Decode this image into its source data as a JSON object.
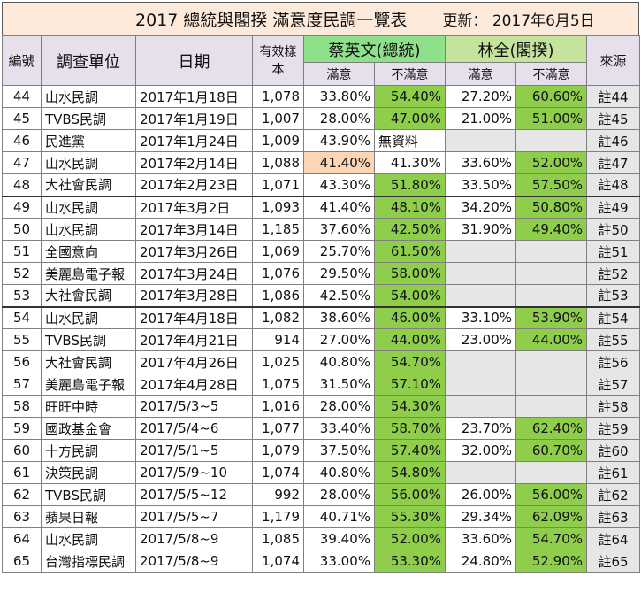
{
  "title": "2017 總統與閣揆  滿意度民調一覽表",
  "updated": "更新： 2017年6月5日",
  "headers": {
    "no": "編號",
    "unit": "調查單位",
    "date": "日期",
    "sample": "有效樣本",
    "tsai": "蔡英文(總統)",
    "lin": "林全(閣揆)",
    "satisfied": "滿意",
    "unsatisfied": "不滿意",
    "source": "來源"
  },
  "colors": {
    "green": "#8fce4b",
    "orange": "#fcd5b4",
    "header": "#e6e0ec",
    "title": "#fdeada"
  },
  "rows": [
    {
      "no": "44",
      "unit": "山水民調",
      "date": "2017年1月18日",
      "n": "1,078",
      "ts": "33.80%",
      "tu": "54.40%",
      "ls": "27.20%",
      "lu": "60.60%",
      "src": "註44"
    },
    {
      "no": "45",
      "unit": "TVBS民調",
      "date": "2017年1月19日",
      "n": "1,007",
      "ts": "28.00%",
      "tu": "47.00%",
      "ls": "21.00%",
      "lu": "51.00%",
      "src": "註45"
    },
    {
      "no": "46",
      "unit": "民進黨",
      "date": "2017年1月24日",
      "n": "1,009",
      "ts": "43.90%",
      "tu": "無資料",
      "ls": "",
      "lu": "",
      "src": "註46"
    },
    {
      "no": "47",
      "unit": "山水民調",
      "date": "2017年2月14日",
      "n": "1,088",
      "ts": "41.40%",
      "tu": "41.30%",
      "ls": "33.60%",
      "lu": "52.00%",
      "src": "註47"
    },
    {
      "no": "48",
      "unit": "大社會民調",
      "date": "2017年2月23日",
      "n": "1,071",
      "ts": "43.30%",
      "tu": "51.80%",
      "ls": "33.50%",
      "lu": "57.50%",
      "src": "註48"
    },
    {
      "no": "49",
      "unit": "山水民調",
      "date": "2017年3月2日",
      "n": "1,093",
      "ts": "41.40%",
      "tu": "48.10%",
      "ls": "34.20%",
      "lu": "50.80%",
      "src": "註49"
    },
    {
      "no": "50",
      "unit": "山水民調",
      "date": "2017年3月14日",
      "n": "1,185",
      "ts": "37.60%",
      "tu": "42.50%",
      "ls": "31.90%",
      "lu": "49.40%",
      "src": "註50"
    },
    {
      "no": "51",
      "unit": "全國意向",
      "date": "2017年3月26日",
      "n": "1,069",
      "ts": "25.70%",
      "tu": "61.50%",
      "ls": "",
      "lu": "",
      "src": "註51"
    },
    {
      "no": "52",
      "unit": "美麗島電子報",
      "date": "2017年3月24日",
      "n": "1,076",
      "ts": "29.50%",
      "tu": "58.00%",
      "ls": "",
      "lu": "",
      "src": "註52"
    },
    {
      "no": "53",
      "unit": "大社會民調",
      "date": "2017年3月28日",
      "n": "1,086",
      "ts": "42.50%",
      "tu": "54.00%",
      "ls": "",
      "lu": "",
      "src": "註53"
    },
    {
      "no": "54",
      "unit": "山水民調",
      "date": "2017年4月18日",
      "n": "1,082",
      "ts": "38.60%",
      "tu": "46.00%",
      "ls": "33.10%",
      "lu": "53.90%",
      "src": "註54"
    },
    {
      "no": "55",
      "unit": "TVBS民調",
      "date": "2017年4月21日",
      "n": "914",
      "ts": "27.00%",
      "tu": "44.00%",
      "ls": "23.00%",
      "lu": "44.00%",
      "src": "註55"
    },
    {
      "no": "56",
      "unit": "大社會民調",
      "date": "2017年4月26日",
      "n": "1,025",
      "ts": "40.80%",
      "tu": "54.70%",
      "ls": "",
      "lu": "",
      "src": "註56"
    },
    {
      "no": "57",
      "unit": "美麗島電子報",
      "date": "2017年4月28日",
      "n": "1,075",
      "ts": "31.50%",
      "tu": "57.10%",
      "ls": "",
      "lu": "",
      "src": "註57"
    },
    {
      "no": "58",
      "unit": "旺旺中時",
      "date": "2017/5/3~5",
      "n": "1,016",
      "ts": "28.00%",
      "tu": "54.30%",
      "ls": "",
      "lu": "",
      "src": "註58"
    },
    {
      "no": "59",
      "unit": "國政基金會",
      "date": "2017/5/4~6",
      "n": "1,077",
      "ts": "33.40%",
      "tu": "58.70%",
      "ls": "23.70%",
      "lu": "62.40%",
      "src": "註59"
    },
    {
      "no": "60",
      "unit": "十方民調",
      "date": "2017/5/1~5",
      "n": "1,079",
      "ts": "37.50%",
      "tu": "57.40%",
      "ls": "32.00%",
      "lu": "60.70%",
      "src": "註60"
    },
    {
      "no": "61",
      "unit": "決策民調",
      "date": "2017/5/9~10",
      "n": "1,074",
      "ts": "40.80%",
      "tu": "54.80%",
      "ls": "",
      "lu": "",
      "src": "註61"
    },
    {
      "no": "62",
      "unit": "TVBS民調",
      "date": "2017/5/5~12",
      "n": "992",
      "ts": "28.00%",
      "tu": "56.00%",
      "ls": "26.00%",
      "lu": "56.00%",
      "src": "註62"
    },
    {
      "no": "63",
      "unit": "蘋果日報",
      "date": "2017/5/5~7",
      "n": "1,179",
      "ts": "40.71%",
      "tu": "55.30%",
      "ls": "29.34%",
      "lu": "62.09%",
      "src": "註63"
    },
    {
      "no": "64",
      "unit": "山水民調",
      "date": "2017/5/8~9",
      "n": "1,085",
      "ts": "39.40%",
      "tu": "52.00%",
      "ls": "33.60%",
      "lu": "54.70%",
      "src": "註64"
    },
    {
      "no": "65",
      "unit": "台灣指標民調",
      "date": "2017/5/8~9",
      "n": "1,074",
      "ts": "33.00%",
      "tu": "53.30%",
      "ls": "24.80%",
      "lu": "52.90%",
      "src": "註65"
    }
  ]
}
